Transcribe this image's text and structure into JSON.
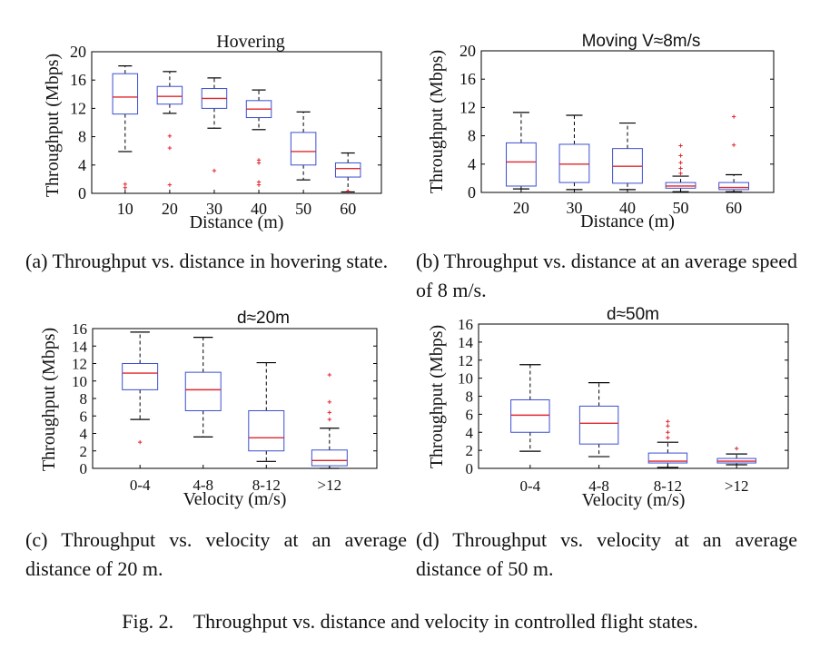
{
  "figure_caption": "Fig. 2.    Throughput vs. distance and velocity in controlled flight states.",
  "chart_data": [
    {
      "type": "box",
      "title": "Hovering",
      "xlabel": "Distance (m)",
      "ylabel": "Throughput (Mbps)",
      "ylim": [
        0,
        20
      ],
      "yticks": [
        "0",
        "4",
        "8",
        "12",
        "16",
        "20"
      ],
      "categories": [
        "10",
        "20",
        "30",
        "40",
        "50",
        "60"
      ],
      "boxes": [
        {
          "lower_whisker": 5.9,
          "q1": 11.2,
          "median": 13.6,
          "q3": 16.9,
          "upper_whisker": 18.0,
          "outliers": [
            0.8,
            1.3
          ]
        },
        {
          "lower_whisker": 11.3,
          "q1": 12.6,
          "median": 13.7,
          "q3": 15.1,
          "upper_whisker": 17.2,
          "outliers": [
            1.2,
            6.4,
            8.1
          ]
        },
        {
          "lower_whisker": 9.2,
          "q1": 12.0,
          "median": 13.4,
          "q3": 14.8,
          "upper_whisker": 16.3,
          "outliers": [
            3.2
          ]
        },
        {
          "lower_whisker": 9.0,
          "q1": 10.7,
          "median": 11.9,
          "q3": 13.1,
          "upper_whisker": 14.6,
          "outliers": [
            1.2,
            1.6,
            4.3,
            4.7
          ]
        },
        {
          "lower_whisker": 1.9,
          "q1": 4.0,
          "median": 5.9,
          "q3": 8.6,
          "upper_whisker": 11.5,
          "outliers": []
        },
        {
          "lower_whisker": 0.2,
          "q1": 2.3,
          "median": 3.5,
          "q3": 4.3,
          "upper_whisker": 5.7,
          "outliers": [
            0.3
          ]
        }
      ],
      "caption": "(a) Throughput vs. distance in hovering state."
    },
    {
      "type": "box",
      "title": "Moving  V≈8m/s",
      "xlabel": "Distance (m)",
      "ylabel": "Throughput (Mbps)",
      "ylim": [
        0,
        20
      ],
      "yticks": [
        "0",
        "4",
        "8",
        "12",
        "16",
        "20"
      ],
      "categories": [
        "20",
        "30",
        "40",
        "50",
        "60"
      ],
      "boxes": [
        {
          "lower_whisker": 0.5,
          "q1": 0.9,
          "median": 4.3,
          "q3": 7.0,
          "upper_whisker": 11.3,
          "outliers": []
        },
        {
          "lower_whisker": 0.4,
          "q1": 1.4,
          "median": 4.0,
          "q3": 6.8,
          "upper_whisker": 10.9,
          "outliers": []
        },
        {
          "lower_whisker": 0.4,
          "q1": 1.3,
          "median": 3.7,
          "q3": 6.2,
          "upper_whisker": 9.8,
          "outliers": []
        },
        {
          "lower_whisker": 0.1,
          "q1": 0.6,
          "median": 0.9,
          "q3": 1.4,
          "upper_whisker": 2.3,
          "outliers": [
            2.7,
            3.4,
            4.2,
            5.2,
            6.6
          ]
        },
        {
          "lower_whisker": 0.1,
          "q1": 0.4,
          "median": 0.7,
          "q3": 1.4,
          "upper_whisker": 2.5,
          "outliers": [
            6.7,
            10.7
          ]
        }
      ],
      "caption": "(b) Throughput vs. distance at an average speed of 8 m/s."
    },
    {
      "type": "box",
      "title": "d≈20m",
      "xlabel": "Velocity (m/s)",
      "ylabel": "Throughput (Mbps)",
      "ylim": [
        0,
        16
      ],
      "yticks": [
        "0",
        "2",
        "4",
        "6",
        "8",
        "10",
        "12",
        "14",
        "16"
      ],
      "categories": [
        "0-4",
        "4-8",
        "8-12",
        ">12"
      ],
      "boxes": [
        {
          "lower_whisker": 5.6,
          "q1": 9.0,
          "median": 10.9,
          "q3": 12.0,
          "upper_whisker": 15.6,
          "outliers": [
            3.0
          ]
        },
        {
          "lower_whisker": 3.6,
          "q1": 6.6,
          "median": 9.0,
          "q3": 11.0,
          "upper_whisker": 15.0,
          "outliers": []
        },
        {
          "lower_whisker": 0.8,
          "q1": 2.0,
          "median": 3.5,
          "q3": 6.6,
          "upper_whisker": 12.1,
          "outliers": []
        },
        {
          "lower_whisker": 0.0,
          "q1": 0.3,
          "median": 0.9,
          "q3": 2.1,
          "upper_whisker": 4.6,
          "outliers": [
            5.6,
            6.4,
            7.6,
            10.7
          ]
        }
      ],
      "caption": "(c) Throughput vs. velocity at an average distance of 20 m."
    },
    {
      "type": "box",
      "title": "d≈50m",
      "xlabel": "Velocity (m/s)",
      "ylabel": "Throughput (Mbps)",
      "ylim": [
        0,
        16
      ],
      "yticks": [
        "0",
        "2",
        "4",
        "6",
        "8",
        "10",
        "12",
        "14",
        "16"
      ],
      "categories": [
        "0-4",
        "4-8",
        "8-12",
        ">12"
      ],
      "boxes": [
        {
          "lower_whisker": 1.9,
          "q1": 4.0,
          "median": 5.9,
          "q3": 7.6,
          "upper_whisker": 11.5,
          "outliers": []
        },
        {
          "lower_whisker": 1.3,
          "q1": 2.7,
          "median": 5.0,
          "q3": 6.9,
          "upper_whisker": 9.5,
          "outliers": []
        },
        {
          "lower_whisker": 0.1,
          "q1": 0.6,
          "median": 0.8,
          "q3": 1.7,
          "upper_whisker": 2.9,
          "outliers": [
            3.4,
            4.0,
            4.7,
            5.2
          ]
        },
        {
          "lower_whisker": 0.4,
          "q1": 0.6,
          "median": 0.8,
          "q3": 1.1,
          "upper_whisker": 1.6,
          "outliers": [
            2.2
          ]
        }
      ],
      "caption": "(d) Throughput vs. velocity at an average distance of 50 m."
    }
  ]
}
